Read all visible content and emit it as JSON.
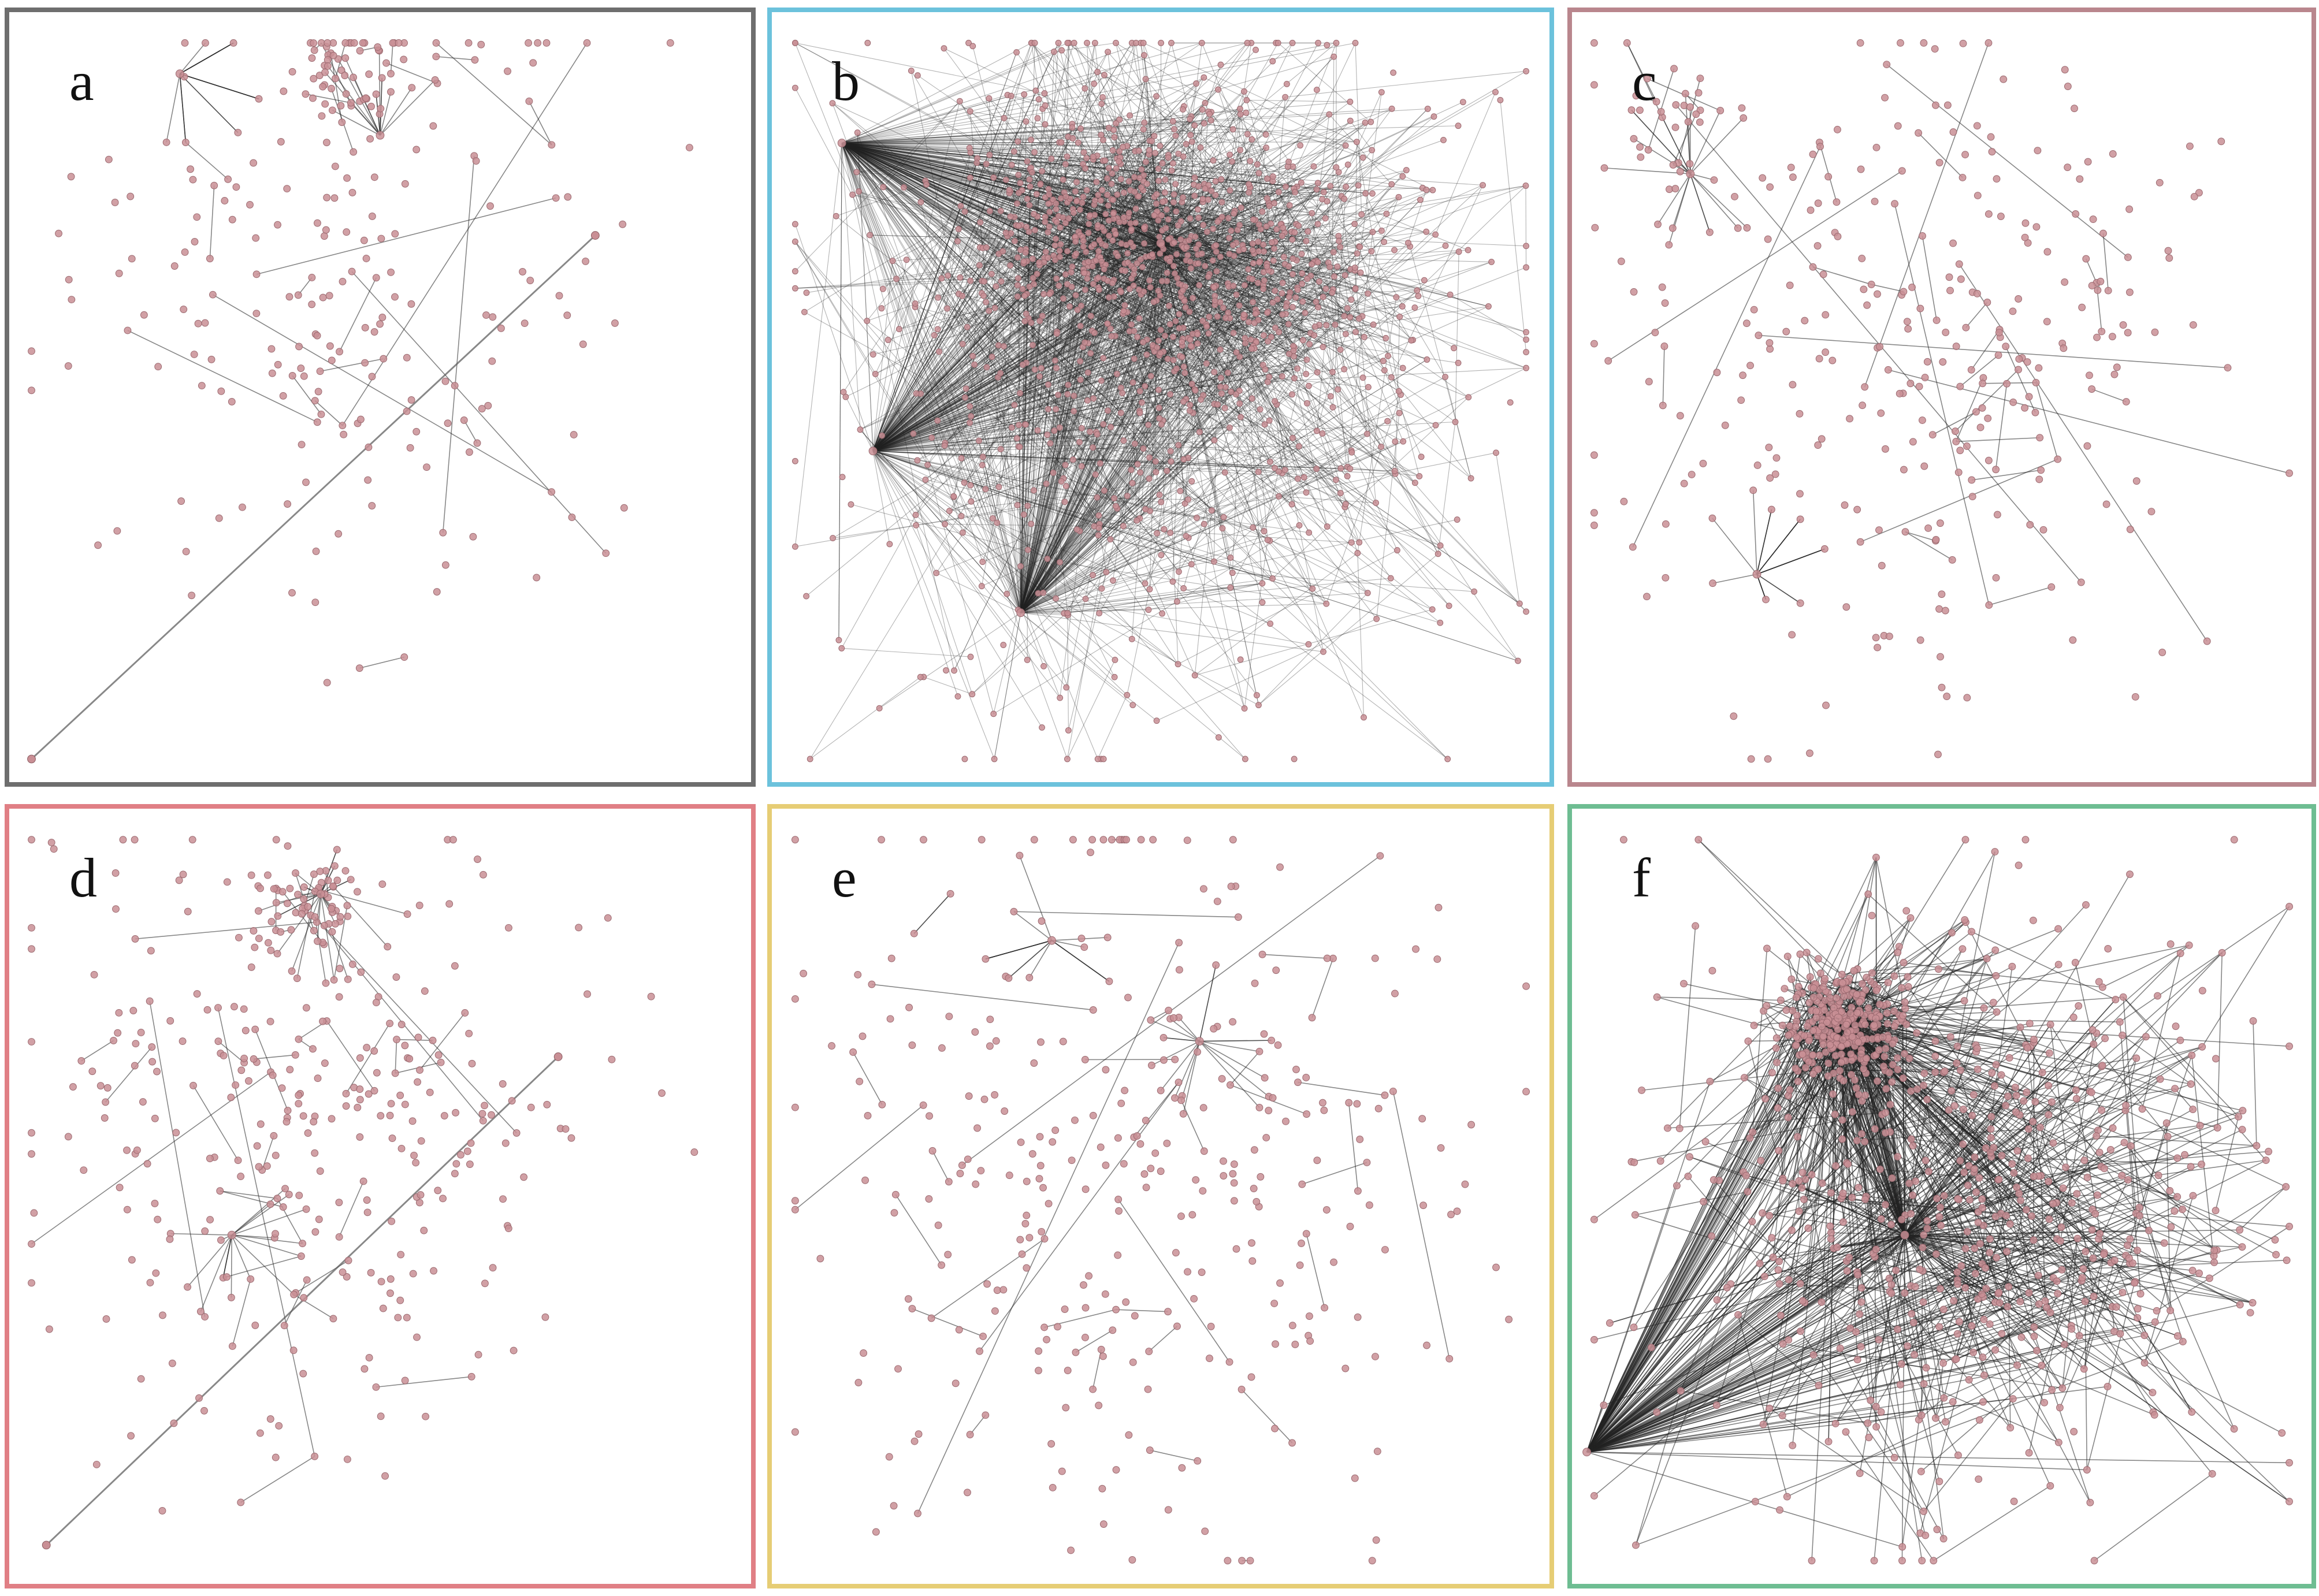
{
  "figure": {
    "panels": [
      {
        "id": "a",
        "label": "a",
        "border_color": "#6e6e6e",
        "density": "sparse",
        "nodes": 260,
        "edges": 60,
        "has_diagonal_line": true
      },
      {
        "id": "b",
        "label": "b",
        "border_color": "#6cc2dc",
        "density": "dense",
        "nodes": 1400,
        "edges": 2600,
        "has_diagonal_line": false
      },
      {
        "id": "c",
        "label": "c",
        "border_color": "#b9868d",
        "density": "sparse",
        "nodes": 330,
        "edges": 90,
        "has_diagonal_line": false
      },
      {
        "id": "d",
        "label": "d",
        "border_color": "#e07f85",
        "density": "sparse",
        "nodes": 380,
        "edges": 90,
        "has_diagonal_line": true
      },
      {
        "id": "e",
        "label": "e",
        "border_color": "#e6cd75",
        "density": "sparse",
        "nodes": 330,
        "edges": 70,
        "has_diagonal_line": false
      },
      {
        "id": "f",
        "label": "f",
        "border_color": "#6ebd92",
        "density": "medium",
        "nodes": 900,
        "edges": 1200,
        "has_diagonal_line": false
      }
    ],
    "node_color": "#c98f95",
    "edge_color": "#222222"
  }
}
